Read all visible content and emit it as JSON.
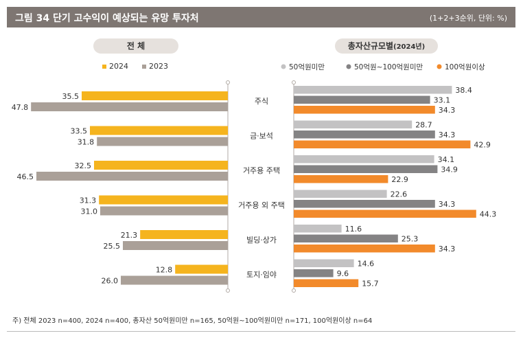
{
  "header": {
    "title": "그림 34  단기 고수익이 예상되는 유망 투자처",
    "note": "(1+2+3순위, 단위: %)"
  },
  "left_panel": {
    "title": "전 체"
  },
  "right_panel": {
    "title": "총자산규모별",
    "title_suffix": "(2024년)"
  },
  "footnote": "주) 전체 2023 n=400, 2024 n=400, 총자산 50억원미만 n=165, 50억원~100억원미만 n=171, 100억원이상 n=64",
  "colors": {
    "y2024": "#f5b41e",
    "y2023": "#aaa098",
    "under50": "#c3c2c3",
    "mid": "#848384",
    "over100": "#f28a2b",
    "axis": "#b0a9a4"
  },
  "chart_data": [
    {
      "type": "bar",
      "orientation": "horizontal",
      "title": "전 체",
      "categories": [
        "주식",
        "금·보석",
        "거주용 주택",
        "거주용 외 주택",
        "빌딩·상가",
        "토지·임야"
      ],
      "series": [
        {
          "name": "2024",
          "values": [
            35.5,
            33.5,
            32.5,
            31.3,
            21.3,
            12.8
          ]
        },
        {
          "name": "2023",
          "values": [
            47.8,
            31.8,
            46.5,
            31.0,
            25.5,
            26.0
          ]
        }
      ],
      "direction": "right-to-left",
      "legend": "top",
      "grid": false
    },
    {
      "type": "bar",
      "orientation": "horizontal",
      "title": "총자산규모별(2024년)",
      "categories": [
        "주식",
        "금·보석",
        "거주용 주택",
        "거주용 외 주택",
        "빌딩·상가",
        "토지·임야"
      ],
      "series": [
        {
          "name": "50억원미만",
          "values": [
            38.4,
            28.7,
            34.1,
            22.6,
            11.6,
            14.6
          ]
        },
        {
          "name": "50억원~100억원미만",
          "values": [
            33.1,
            34.3,
            34.9,
            34.3,
            25.3,
            9.6
          ]
        },
        {
          "name": "100억원이상",
          "values": [
            34.3,
            42.9,
            22.9,
            44.3,
            34.3,
            15.7
          ]
        }
      ],
      "direction": "left-to-right",
      "legend": "top",
      "grid": false
    }
  ]
}
